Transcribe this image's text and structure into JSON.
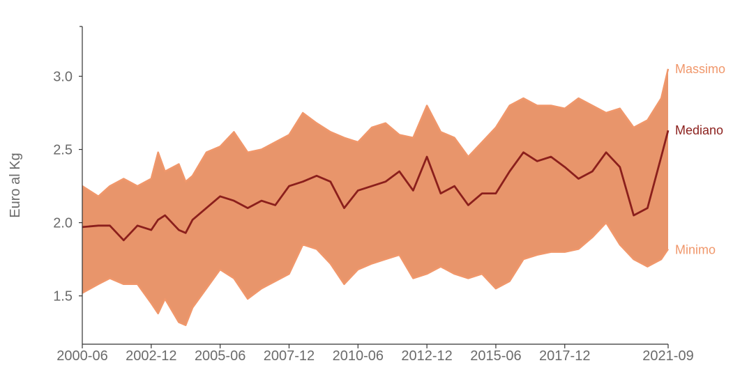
{
  "chart_data": {
    "type": "area",
    "ylabel": "Euro al Kg",
    "xlabel": "",
    "ylim": [
      1.17,
      3.34
    ],
    "yticks": [
      1.5,
      2.0,
      2.5,
      3.0
    ],
    "ytick_labels": [
      "1.5",
      "2.0",
      "2.5",
      "3.0"
    ],
    "xticks": [
      "2000-06",
      "2002-12",
      "2005-06",
      "2007-12",
      "2010-06",
      "2012-12",
      "2015-06",
      "2017-12",
      "2021-09"
    ],
    "xrange": [
      "2000-06",
      "2021-09"
    ],
    "grid": false,
    "colors": {
      "band": "#e8956b",
      "band_edge": "#f0976b",
      "median": "#8b1f1c",
      "axis": "#333333",
      "tick_text": "#6b6b6b"
    },
    "series": [
      {
        "name": "Massimo",
        "points": [
          [
            "2000-06",
            2.25
          ],
          [
            "2001-01",
            2.18
          ],
          [
            "2001-06",
            2.25
          ],
          [
            "2001-12",
            2.3
          ],
          [
            "2002-06",
            2.25
          ],
          [
            "2002-12",
            2.3
          ],
          [
            "2003-03",
            2.48
          ],
          [
            "2003-06",
            2.35
          ],
          [
            "2003-12",
            2.4
          ],
          [
            "2004-03",
            2.28
          ],
          [
            "2004-06",
            2.32
          ],
          [
            "2004-12",
            2.48
          ],
          [
            "2005-06",
            2.52
          ],
          [
            "2005-12",
            2.62
          ],
          [
            "2006-06",
            2.48
          ],
          [
            "2006-12",
            2.5
          ],
          [
            "2007-06",
            2.55
          ],
          [
            "2007-12",
            2.6
          ],
          [
            "2008-06",
            2.75
          ],
          [
            "2008-12",
            2.68
          ],
          [
            "2009-06",
            2.62
          ],
          [
            "2009-12",
            2.58
          ],
          [
            "2010-06",
            2.55
          ],
          [
            "2010-12",
            2.65
          ],
          [
            "2011-06",
            2.68
          ],
          [
            "2011-12",
            2.6
          ],
          [
            "2012-06",
            2.58
          ],
          [
            "2012-12",
            2.8
          ],
          [
            "2013-06",
            2.62
          ],
          [
            "2013-12",
            2.58
          ],
          [
            "2014-06",
            2.45
          ],
          [
            "2014-12",
            2.55
          ],
          [
            "2015-06",
            2.65
          ],
          [
            "2015-12",
            2.8
          ],
          [
            "2016-06",
            2.85
          ],
          [
            "2016-12",
            2.8
          ],
          [
            "2017-06",
            2.8
          ],
          [
            "2017-12",
            2.78
          ],
          [
            "2018-06",
            2.85
          ],
          [
            "2018-12",
            2.8
          ],
          [
            "2019-06",
            2.75
          ],
          [
            "2019-12",
            2.78
          ],
          [
            "2020-06",
            2.65
          ],
          [
            "2020-12",
            2.7
          ],
          [
            "2021-06",
            2.85
          ],
          [
            "2021-09",
            3.05
          ]
        ]
      },
      {
        "name": "Mediano",
        "points": [
          [
            "2000-06",
            1.97
          ],
          [
            "2001-01",
            1.98
          ],
          [
            "2001-06",
            1.98
          ],
          [
            "2001-12",
            1.88
          ],
          [
            "2002-06",
            1.98
          ],
          [
            "2002-12",
            1.95
          ],
          [
            "2003-03",
            2.02
          ],
          [
            "2003-06",
            2.05
          ],
          [
            "2003-12",
            1.95
          ],
          [
            "2004-03",
            1.93
          ],
          [
            "2004-06",
            2.02
          ],
          [
            "2004-12",
            2.1
          ],
          [
            "2005-06",
            2.18
          ],
          [
            "2005-12",
            2.15
          ],
          [
            "2006-06",
            2.1
          ],
          [
            "2006-12",
            2.15
          ],
          [
            "2007-06",
            2.12
          ],
          [
            "2007-12",
            2.25
          ],
          [
            "2008-06",
            2.28
          ],
          [
            "2008-12",
            2.32
          ],
          [
            "2009-06",
            2.28
          ],
          [
            "2009-12",
            2.1
          ],
          [
            "2010-06",
            2.22
          ],
          [
            "2010-12",
            2.25
          ],
          [
            "2011-06",
            2.28
          ],
          [
            "2011-12",
            2.35
          ],
          [
            "2012-06",
            2.22
          ],
          [
            "2012-12",
            2.45
          ],
          [
            "2013-06",
            2.2
          ],
          [
            "2013-12",
            2.25
          ],
          [
            "2014-06",
            2.12
          ],
          [
            "2014-12",
            2.2
          ],
          [
            "2015-06",
            2.2
          ],
          [
            "2015-12",
            2.35
          ],
          [
            "2016-06",
            2.48
          ],
          [
            "2016-12",
            2.42
          ],
          [
            "2017-06",
            2.45
          ],
          [
            "2017-12",
            2.38
          ],
          [
            "2018-06",
            2.3
          ],
          [
            "2018-12",
            2.35
          ],
          [
            "2019-06",
            2.48
          ],
          [
            "2019-12",
            2.38
          ],
          [
            "2020-06",
            2.05
          ],
          [
            "2020-12",
            2.1
          ],
          [
            "2021-06",
            2.45
          ],
          [
            "2021-09",
            2.63
          ]
        ]
      },
      {
        "name": "Minimo",
        "points": [
          [
            "2000-06",
            1.52
          ],
          [
            "2001-01",
            1.58
          ],
          [
            "2001-06",
            1.62
          ],
          [
            "2001-12",
            1.58
          ],
          [
            "2002-06",
            1.58
          ],
          [
            "2002-12",
            1.45
          ],
          [
            "2003-03",
            1.38
          ],
          [
            "2003-06",
            1.48
          ],
          [
            "2003-12",
            1.32
          ],
          [
            "2004-03",
            1.3
          ],
          [
            "2004-06",
            1.42
          ],
          [
            "2004-12",
            1.55
          ],
          [
            "2005-06",
            1.68
          ],
          [
            "2005-12",
            1.62
          ],
          [
            "2006-06",
            1.48
          ],
          [
            "2006-12",
            1.55
          ],
          [
            "2007-06",
            1.6
          ],
          [
            "2007-12",
            1.65
          ],
          [
            "2008-06",
            1.85
          ],
          [
            "2008-12",
            1.82
          ],
          [
            "2009-06",
            1.72
          ],
          [
            "2009-12",
            1.58
          ],
          [
            "2010-06",
            1.68
          ],
          [
            "2010-12",
            1.72
          ],
          [
            "2011-06",
            1.75
          ],
          [
            "2011-12",
            1.78
          ],
          [
            "2012-06",
            1.62
          ],
          [
            "2012-12",
            1.65
          ],
          [
            "2013-06",
            1.7
          ],
          [
            "2013-12",
            1.65
          ],
          [
            "2014-06",
            1.62
          ],
          [
            "2014-12",
            1.65
          ],
          [
            "2015-06",
            1.55
          ],
          [
            "2015-12",
            1.6
          ],
          [
            "2016-06",
            1.75
          ],
          [
            "2016-12",
            1.78
          ],
          [
            "2017-06",
            1.8
          ],
          [
            "2017-12",
            1.8
          ],
          [
            "2018-06",
            1.82
          ],
          [
            "2018-12",
            1.9
          ],
          [
            "2019-06",
            2.0
          ],
          [
            "2019-12",
            1.85
          ],
          [
            "2020-06",
            1.75
          ],
          [
            "2020-12",
            1.7
          ],
          [
            "2021-06",
            1.75
          ],
          [
            "2021-09",
            1.82
          ]
        ]
      }
    ]
  }
}
